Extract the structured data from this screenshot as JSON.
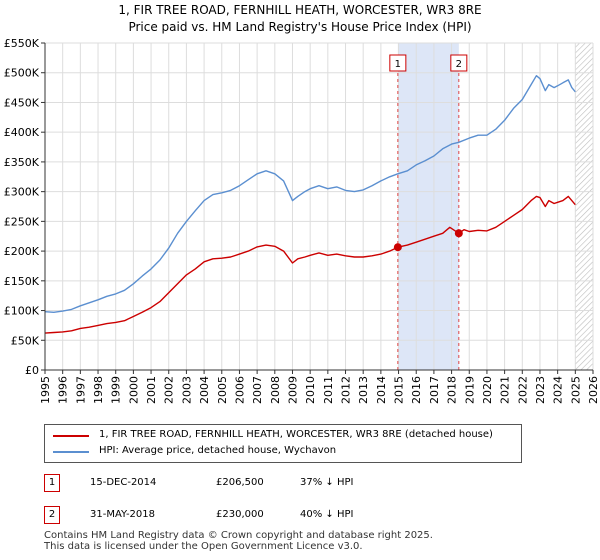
{
  "chart_data": {
    "type": "line",
    "title": "1, FIR TREE ROAD, FERNHILL HEATH, WORCESTER, WR3 8RE",
    "subtitle": "Price paid vs. HM Land Registry's House Price Index (HPI)",
    "xlabel": "",
    "ylabel": "",
    "xlim": [
      1995,
      2026
    ],
    "ylim": [
      0,
      550000
    ],
    "x_ticks": [
      "1995",
      "1996",
      "1997",
      "1998",
      "1999",
      "2000",
      "2001",
      "2002",
      "2003",
      "2004",
      "2005",
      "2006",
      "2007",
      "2008",
      "2009",
      "2010",
      "2011",
      "2012",
      "2013",
      "2014",
      "2015",
      "2016",
      "2017",
      "2018",
      "2019",
      "2020",
      "2021",
      "2022",
      "2023",
      "2024",
      "2025",
      "2026"
    ],
    "y_ticks": [
      {
        "value": 0,
        "label": "£0"
      },
      {
        "value": 50000,
        "label": "£50K"
      },
      {
        "value": 100000,
        "label": "£100K"
      },
      {
        "value": 150000,
        "label": "£150K"
      },
      {
        "value": 200000,
        "label": "£200K"
      },
      {
        "value": 250000,
        "label": "£250K"
      },
      {
        "value": 300000,
        "label": "£300K"
      },
      {
        "value": 350000,
        "label": "£350K"
      },
      {
        "value": 400000,
        "label": "£400K"
      },
      {
        "value": 450000,
        "label": "£450K"
      },
      {
        "value": 500000,
        "label": "£500K"
      },
      {
        "value": 550000,
        "label": "£550K"
      }
    ],
    "grid": true,
    "series": [
      {
        "name": "1, FIR TREE ROAD, FERNHILL HEATH, WORCESTER, WR3 8RE (detached house)",
        "color": "#cc0000",
        "points": [
          [
            1995.0,
            62000
          ],
          [
            1995.5,
            63000
          ],
          [
            1996.0,
            64000
          ],
          [
            1996.5,
            66000
          ],
          [
            1997.0,
            70000
          ],
          [
            1997.5,
            72000
          ],
          [
            1998.0,
            75000
          ],
          [
            1998.5,
            78000
          ],
          [
            1999.0,
            80000
          ],
          [
            1999.5,
            83000
          ],
          [
            2000.0,
            90000
          ],
          [
            2000.5,
            97000
          ],
          [
            2001.0,
            105000
          ],
          [
            2001.5,
            115000
          ],
          [
            2002.0,
            130000
          ],
          [
            2002.5,
            145000
          ],
          [
            2003.0,
            160000
          ],
          [
            2003.5,
            170000
          ],
          [
            2004.0,
            182000
          ],
          [
            2004.5,
            187000
          ],
          [
            2005.0,
            188000
          ],
          [
            2005.5,
            190000
          ],
          [
            2006.0,
            195000
          ],
          [
            2006.5,
            200000
          ],
          [
            2007.0,
            207000
          ],
          [
            2007.5,
            210000
          ],
          [
            2008.0,
            208000
          ],
          [
            2008.5,
            200000
          ],
          [
            2009.0,
            180000
          ],
          [
            2009.3,
            187000
          ],
          [
            2009.7,
            190000
          ],
          [
            2010.0,
            193000
          ],
          [
            2010.5,
            197000
          ],
          [
            2011.0,
            193000
          ],
          [
            2011.5,
            195000
          ],
          [
            2012.0,
            192000
          ],
          [
            2012.5,
            190000
          ],
          [
            2013.0,
            190000
          ],
          [
            2013.5,
            192000
          ],
          [
            2014.0,
            195000
          ],
          [
            2014.5,
            200000
          ],
          [
            2014.96,
            206500
          ],
          [
            2015.5,
            210000
          ],
          [
            2016.0,
            215000
          ],
          [
            2016.5,
            220000
          ],
          [
            2017.0,
            225000
          ],
          [
            2017.5,
            230000
          ],
          [
            2017.9,
            240000
          ],
          [
            2018.41,
            230000
          ],
          [
            2018.7,
            236000
          ],
          [
            2019.0,
            233000
          ],
          [
            2019.5,
            235000
          ],
          [
            2020.0,
            234000
          ],
          [
            2020.5,
            240000
          ],
          [
            2021.0,
            250000
          ],
          [
            2021.5,
            260000
          ],
          [
            2022.0,
            270000
          ],
          [
            2022.5,
            285000
          ],
          [
            2022.8,
            292000
          ],
          [
            2023.0,
            290000
          ],
          [
            2023.3,
            275000
          ],
          [
            2023.5,
            285000
          ],
          [
            2023.8,
            280000
          ],
          [
            2024.0,
            282000
          ],
          [
            2024.3,
            285000
          ],
          [
            2024.6,
            292000
          ],
          [
            2024.8,
            285000
          ],
          [
            2025.0,
            278000
          ]
        ]
      },
      {
        "name": "HPI: Average price, detached house, Wychavon",
        "color": "#5b8fd0",
        "points": [
          [
            1995.0,
            98000
          ],
          [
            1995.5,
            97000
          ],
          [
            1996.0,
            99000
          ],
          [
            1996.5,
            102000
          ],
          [
            1997.0,
            108000
          ],
          [
            1997.5,
            113000
          ],
          [
            1998.0,
            118000
          ],
          [
            1998.5,
            124000
          ],
          [
            1999.0,
            128000
          ],
          [
            1999.5,
            134000
          ],
          [
            2000.0,
            145000
          ],
          [
            2000.5,
            158000
          ],
          [
            2001.0,
            170000
          ],
          [
            2001.5,
            185000
          ],
          [
            2002.0,
            205000
          ],
          [
            2002.5,
            230000
          ],
          [
            2003.0,
            250000
          ],
          [
            2003.5,
            268000
          ],
          [
            2004.0,
            285000
          ],
          [
            2004.5,
            295000
          ],
          [
            2005.0,
            298000
          ],
          [
            2005.5,
            302000
          ],
          [
            2006.0,
            310000
          ],
          [
            2006.5,
            320000
          ],
          [
            2007.0,
            330000
          ],
          [
            2007.5,
            335000
          ],
          [
            2008.0,
            330000
          ],
          [
            2008.5,
            318000
          ],
          [
            2009.0,
            285000
          ],
          [
            2009.3,
            292000
          ],
          [
            2009.7,
            300000
          ],
          [
            2010.0,
            305000
          ],
          [
            2010.5,
            310000
          ],
          [
            2011.0,
            305000
          ],
          [
            2011.5,
            308000
          ],
          [
            2012.0,
            302000
          ],
          [
            2012.5,
            300000
          ],
          [
            2013.0,
            303000
          ],
          [
            2013.5,
            310000
          ],
          [
            2014.0,
            318000
          ],
          [
            2014.5,
            325000
          ],
          [
            2014.96,
            330000
          ],
          [
            2015.5,
            335000
          ],
          [
            2016.0,
            345000
          ],
          [
            2016.5,
            352000
          ],
          [
            2017.0,
            360000
          ],
          [
            2017.5,
            372000
          ],
          [
            2018.0,
            380000
          ],
          [
            2018.41,
            383000
          ],
          [
            2019.0,
            390000
          ],
          [
            2019.5,
            395000
          ],
          [
            2020.0,
            395000
          ],
          [
            2020.5,
            405000
          ],
          [
            2021.0,
            420000
          ],
          [
            2021.5,
            440000
          ],
          [
            2022.0,
            455000
          ],
          [
            2022.5,
            480000
          ],
          [
            2022.8,
            495000
          ],
          [
            2023.0,
            490000
          ],
          [
            2023.3,
            470000
          ],
          [
            2023.5,
            480000
          ],
          [
            2023.8,
            475000
          ],
          [
            2024.0,
            478000
          ],
          [
            2024.3,
            483000
          ],
          [
            2024.6,
            488000
          ],
          [
            2024.8,
            475000
          ],
          [
            2025.0,
            468000
          ]
        ]
      }
    ],
    "annotations": [
      {
        "label": "1",
        "x": 2014.96,
        "y": 206500,
        "date": "15-DEC-2014",
        "price": "£206,500",
        "hpi": "37% ↓ HPI"
      },
      {
        "label": "2",
        "x": 2018.41,
        "y": 230000,
        "date": "31-MAY-2018",
        "price": "£230,000",
        "hpi": "40% ↓ HPI"
      }
    ],
    "shaded_range": [
      2014.96,
      2018.41
    ],
    "future_hatch_from": 2025.0
  },
  "legend": {
    "red_label": "1, FIR TREE ROAD, FERNHILL HEATH, WORCESTER, WR3 8RE (detached house)",
    "blue_label": "HPI: Average price, detached house, Wychavon"
  },
  "colors": {
    "red": "#cc0000",
    "blue": "#5b8fd0",
    "grid": "#dddddd",
    "shade": "#dde6f7"
  },
  "footer": {
    "line1": "Contains HM Land Registry data © Crown copyright and database right 2025.",
    "line2": "This data is licensed under the Open Government Licence v3.0."
  }
}
